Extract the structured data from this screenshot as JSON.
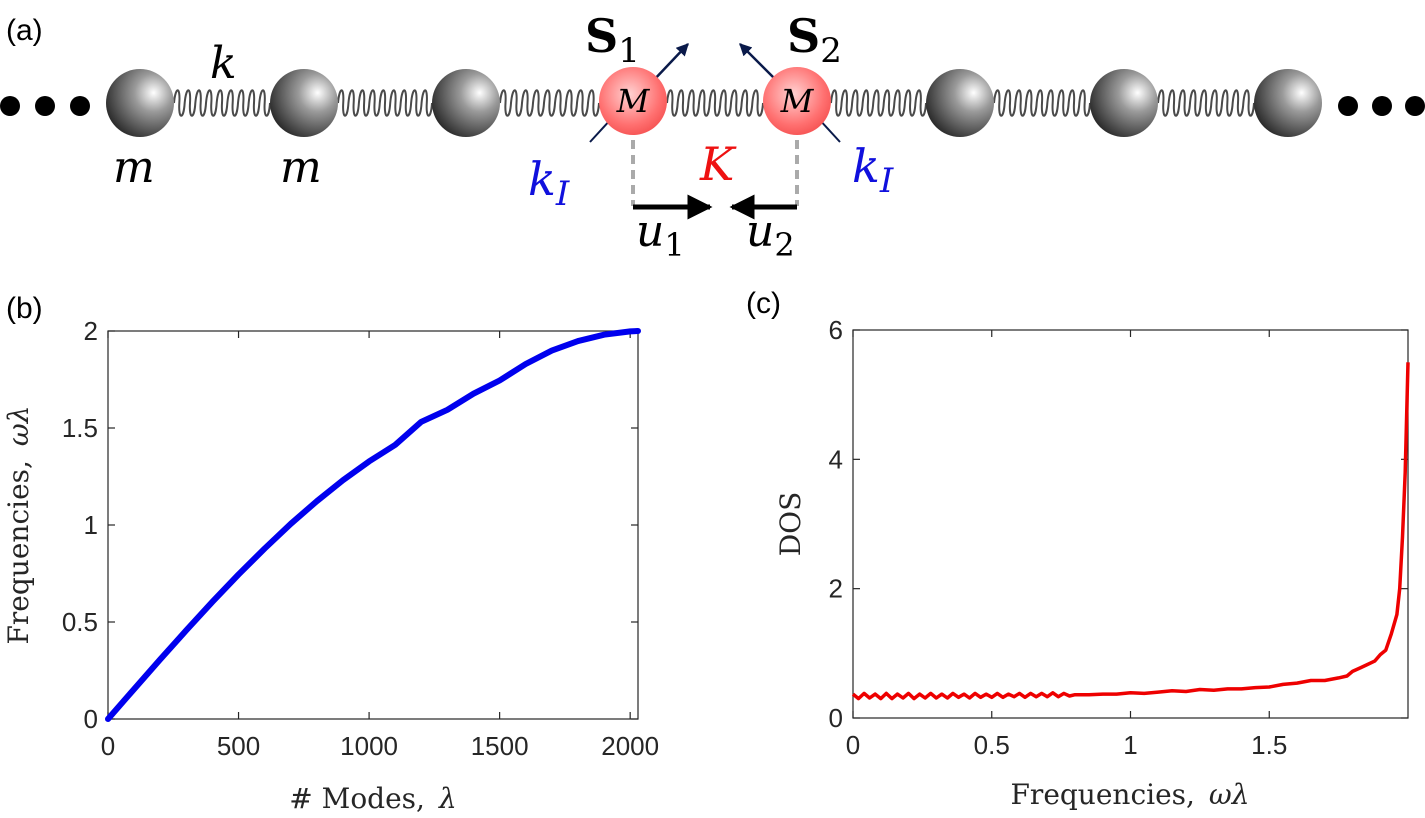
{
  "panel_labels": {
    "a": "(a)",
    "b": "(b)",
    "c": "(c)"
  },
  "schematic": {
    "spring_constant_label": "k",
    "mass_labels": [
      "m",
      "m"
    ],
    "impurity_mass_label": "M",
    "impurity_coupling_label": "K",
    "impurity_spring_label": "k",
    "impurity_spring_subscript": "I",
    "spin_labels": [
      "S",
      "S"
    ],
    "spin_subscripts": [
      "1",
      "2"
    ],
    "displacement_labels": [
      "u",
      "u"
    ],
    "displacement_subscripts": [
      "1",
      "2"
    ],
    "ellipsis": "• • •",
    "colors": {
      "impurity": "#ff5a5a",
      "coupling_label": "#ee1111",
      "impurity_spring_label": "#1010dd",
      "spin_arrow": "#0a1a4a"
    }
  },
  "chart_data": [
    {
      "panel": "b",
      "type": "line",
      "color": "#0000ee",
      "xlabel": "# Modes,",
      "xlabel_symbol": "λ",
      "ylabel": "Frequencies,",
      "ylabel_symbol": "ωλ",
      "xlim": [
        0,
        2030
      ],
      "ylim": [
        0,
        2
      ],
      "xticks": [
        "0",
        "500",
        "1000",
        "1500",
        "2000"
      ],
      "yticks": [
        "0",
        "0.5",
        "1",
        "1.5",
        "2"
      ],
      "series": [
        {
          "x": [
            0,
            100,
            200,
            300,
            400,
            500,
            600,
            700,
            800,
            900,
            1000,
            1100,
            1200,
            1300,
            1400,
            1500,
            1600,
            1700,
            1800,
            1900,
            2000,
            2030
          ],
          "y": [
            0,
            0.154,
            0.307,
            0.457,
            0.604,
            0.745,
            0.879,
            1.006,
            1.123,
            1.231,
            1.328,
            1.413,
            1.532,
            1.594,
            1.677,
            1.745,
            1.83,
            1.899,
            1.948,
            1.981,
            1.998,
            2.0
          ]
        }
      ]
    },
    {
      "panel": "c",
      "type": "line",
      "color": "#ee0000",
      "xlabel": "Frequencies,",
      "xlabel_symbol": "ωλ",
      "ylabel": "DOS",
      "xlim": [
        0,
        2
      ],
      "ylim": [
        0,
        6
      ],
      "xticks": [
        "0",
        "0.5",
        "1",
        "1.5"
      ],
      "yticks": [
        "0",
        "2",
        "4",
        "6"
      ],
      "series": [
        {
          "x": [
            0,
            0.02,
            0.04,
            0.06,
            0.08,
            0.1,
            0.12,
            0.14,
            0.16,
            0.18,
            0.2,
            0.22,
            0.24,
            0.26,
            0.28,
            0.3,
            0.32,
            0.34,
            0.36,
            0.38,
            0.4,
            0.42,
            0.44,
            0.46,
            0.48,
            0.5,
            0.52,
            0.54,
            0.56,
            0.58,
            0.6,
            0.62,
            0.64,
            0.66,
            0.68,
            0.7,
            0.72,
            0.74,
            0.76,
            0.78,
            0.8,
            0.85,
            0.9,
            0.95,
            1.0,
            1.05,
            1.1,
            1.15,
            1.2,
            1.25,
            1.3,
            1.35,
            1.4,
            1.45,
            1.5,
            1.55,
            1.6,
            1.65,
            1.7,
            1.75,
            1.78,
            1.8,
            1.83,
            1.85,
            1.88,
            1.9,
            1.92,
            1.94,
            1.96,
            1.97,
            1.98,
            1.99,
            2.0
          ],
          "y": [
            0.37,
            0.3,
            0.38,
            0.31,
            0.37,
            0.3,
            0.38,
            0.3,
            0.37,
            0.31,
            0.38,
            0.3,
            0.37,
            0.31,
            0.38,
            0.31,
            0.37,
            0.31,
            0.38,
            0.32,
            0.37,
            0.31,
            0.38,
            0.32,
            0.37,
            0.32,
            0.38,
            0.32,
            0.37,
            0.33,
            0.38,
            0.32,
            0.38,
            0.33,
            0.38,
            0.33,
            0.39,
            0.33,
            0.38,
            0.34,
            0.36,
            0.36,
            0.37,
            0.37,
            0.39,
            0.38,
            0.4,
            0.42,
            0.41,
            0.44,
            0.43,
            0.45,
            0.45,
            0.47,
            0.48,
            0.52,
            0.54,
            0.58,
            0.58,
            0.62,
            0.65,
            0.72,
            0.78,
            0.82,
            0.88,
            0.98,
            1.05,
            1.3,
            1.6,
            2.0,
            2.8,
            3.8,
            5.5
          ]
        }
      ]
    }
  ]
}
